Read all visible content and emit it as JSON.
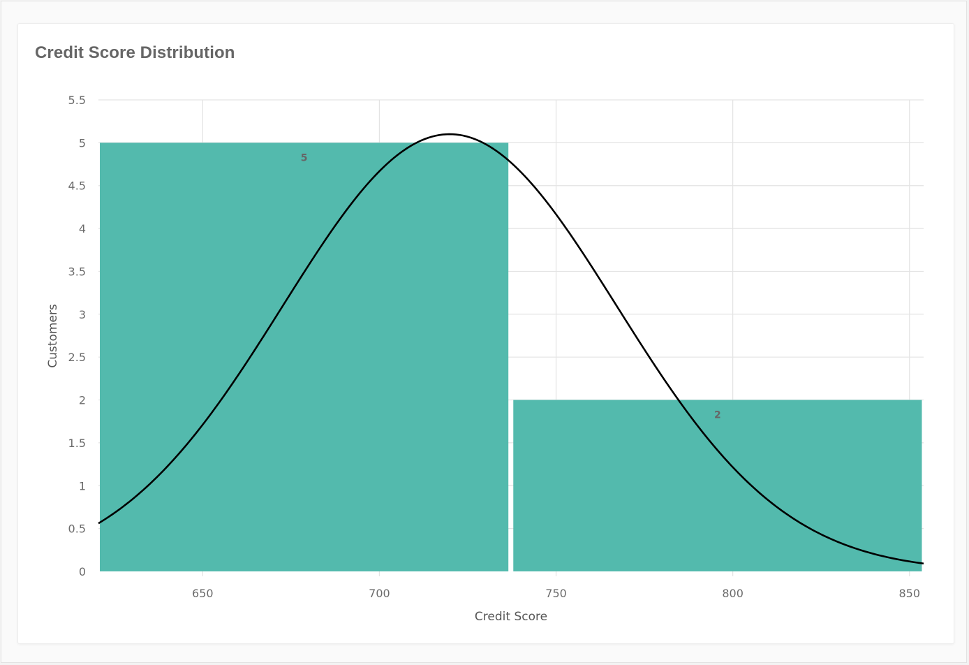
{
  "card": {
    "title": "Credit Score Distribution"
  },
  "colors": {
    "bar": "#53baad",
    "curve": "#000000",
    "grid": "#e3e3e3"
  },
  "chart_data": {
    "type": "bar",
    "subtype": "histogram",
    "title": "Credit Score Distribution",
    "xlabel": "Credit Score",
    "ylabel": "Customers",
    "xlim": [
      620.5,
      854
    ],
    "ylim": [
      0,
      5.5
    ],
    "x_ticks": [
      650,
      700,
      750,
      800,
      850
    ],
    "y_ticks": [
      0,
      0.5,
      1,
      1.5,
      2,
      2.5,
      3,
      3.5,
      4,
      4.5,
      5,
      5.5
    ],
    "bins": [
      {
        "start": 620.5,
        "end": 736.5,
        "value": 5,
        "label": "5"
      },
      {
        "start": 737.5,
        "end": 853.5,
        "value": 2,
        "label": "2"
      }
    ],
    "normal_curve": {
      "mean": 719.9,
      "std": 47.3,
      "peak": 5.1
    },
    "grid": true,
    "legend": "none"
  }
}
